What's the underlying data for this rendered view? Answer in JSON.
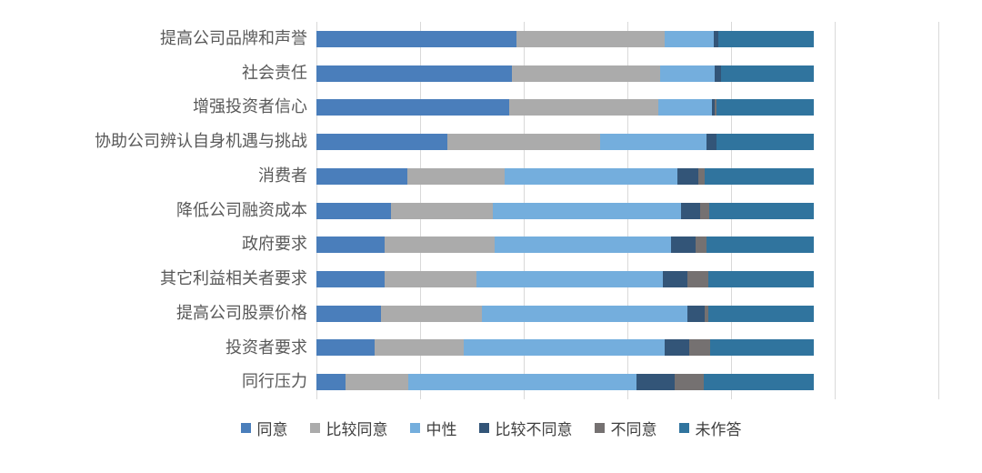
{
  "chart_data": {
    "type": "bar",
    "orientation": "horizontal",
    "stacked": true,
    "title": "",
    "xlabel": "",
    "ylabel": "",
    "categories": [
      "提高公司品牌和声誉",
      "社会责任",
      "增强投资者信心",
      "协助公司辨认自身机遇与挑战",
      "消费者",
      "降低公司融资成本",
      "政府要求",
      "其它利益相关者要求",
      "提高公司股票价格",
      "投资者要求",
      "同行压力"
    ],
    "series": [
      {
        "key": "agree",
        "name": "同意",
        "color": "#4a7ebb",
        "values": [
          9.65,
          9.45,
          9.3,
          6.3,
          4.4,
          3.6,
          3.3,
          3.3,
          3.1,
          2.8,
          1.4
        ]
      },
      {
        "key": "somewhat-agree",
        "name": "比较同意",
        "color": "#ababab",
        "values": [
          7.15,
          7.15,
          7.2,
          7.4,
          4.7,
          4.9,
          5.3,
          4.4,
          4.9,
          4.3,
          3.05
        ]
      },
      {
        "key": "neutral",
        "name": "中性",
        "color": "#74aedd",
        "values": [
          2.35,
          2.6,
          2.6,
          5.1,
          8.3,
          9.1,
          8.5,
          9.0,
          9.9,
          9.7,
          11.0
        ]
      },
      {
        "key": "somewhat-disagree",
        "name": "比较不同意",
        "color": "#335578",
        "values": [
          0.25,
          0.3,
          0.1,
          0.5,
          1.0,
          0.9,
          1.2,
          1.2,
          0.85,
          1.2,
          1.85
        ]
      },
      {
        "key": "disagree",
        "name": "不同意",
        "color": "#757171",
        "values": [
          0.0,
          0.0,
          0.1,
          0.0,
          0.35,
          0.45,
          0.5,
          1.0,
          0.15,
          1.0,
          1.4
        ]
      },
      {
        "key": "no-answer",
        "name": "未作答",
        "color": "#30749e",
        "values": [
          4.6,
          4.5,
          4.7,
          4.7,
          5.25,
          5.05,
          5.2,
          5.1,
          5.1,
          5.0,
          5.3
        ]
      }
    ],
    "row_total": 24,
    "axis": {
      "xmin": 0,
      "xmax": 30,
      "grid_interval": 5,
      "gridline_count": 7,
      "tick_labels_visible": false,
      "gridline_color": "#d9d9d9"
    },
    "legend": {
      "position": "bottom"
    },
    "colors": {
      "category_label": "#595959",
      "legend_text": "#3f3f3f",
      "background": "#ffffff"
    }
  }
}
